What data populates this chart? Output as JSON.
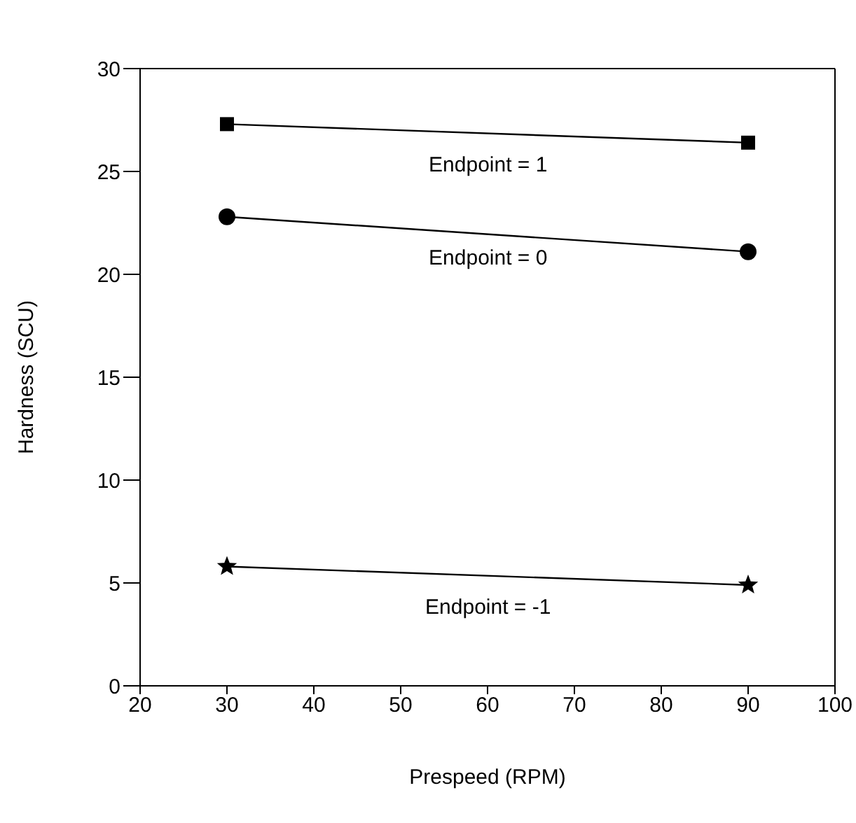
{
  "chart_data": {
    "type": "line",
    "xlabel": "Prespeed (RPM)",
    "ylabel": "Hardness (SCU)",
    "x": [
      30,
      90
    ],
    "series": [
      {
        "name": "Endpoint = 1",
        "color": "#000000",
        "values": [
          27.3,
          26.4
        ],
        "marker": "square"
      },
      {
        "name": "Endpoint = 0",
        "color": "#000000",
        "values": [
          22.8,
          21.1
        ],
        "marker": "circle"
      },
      {
        "name": "Endpoint = -1",
        "color": "#000000",
        "values": [
          5.8,
          4.9
        ],
        "marker": "star"
      }
    ],
    "xlim": [
      20,
      100
    ],
    "xticks": [
      20,
      30,
      40,
      50,
      60,
      70,
      80,
      90,
      100
    ],
    "ylim": [
      0,
      30
    ],
    "yticks": [
      0,
      5,
      10,
      15,
      20,
      25,
      30
    ],
    "grid": false,
    "legend": false,
    "line_style": "solid"
  }
}
